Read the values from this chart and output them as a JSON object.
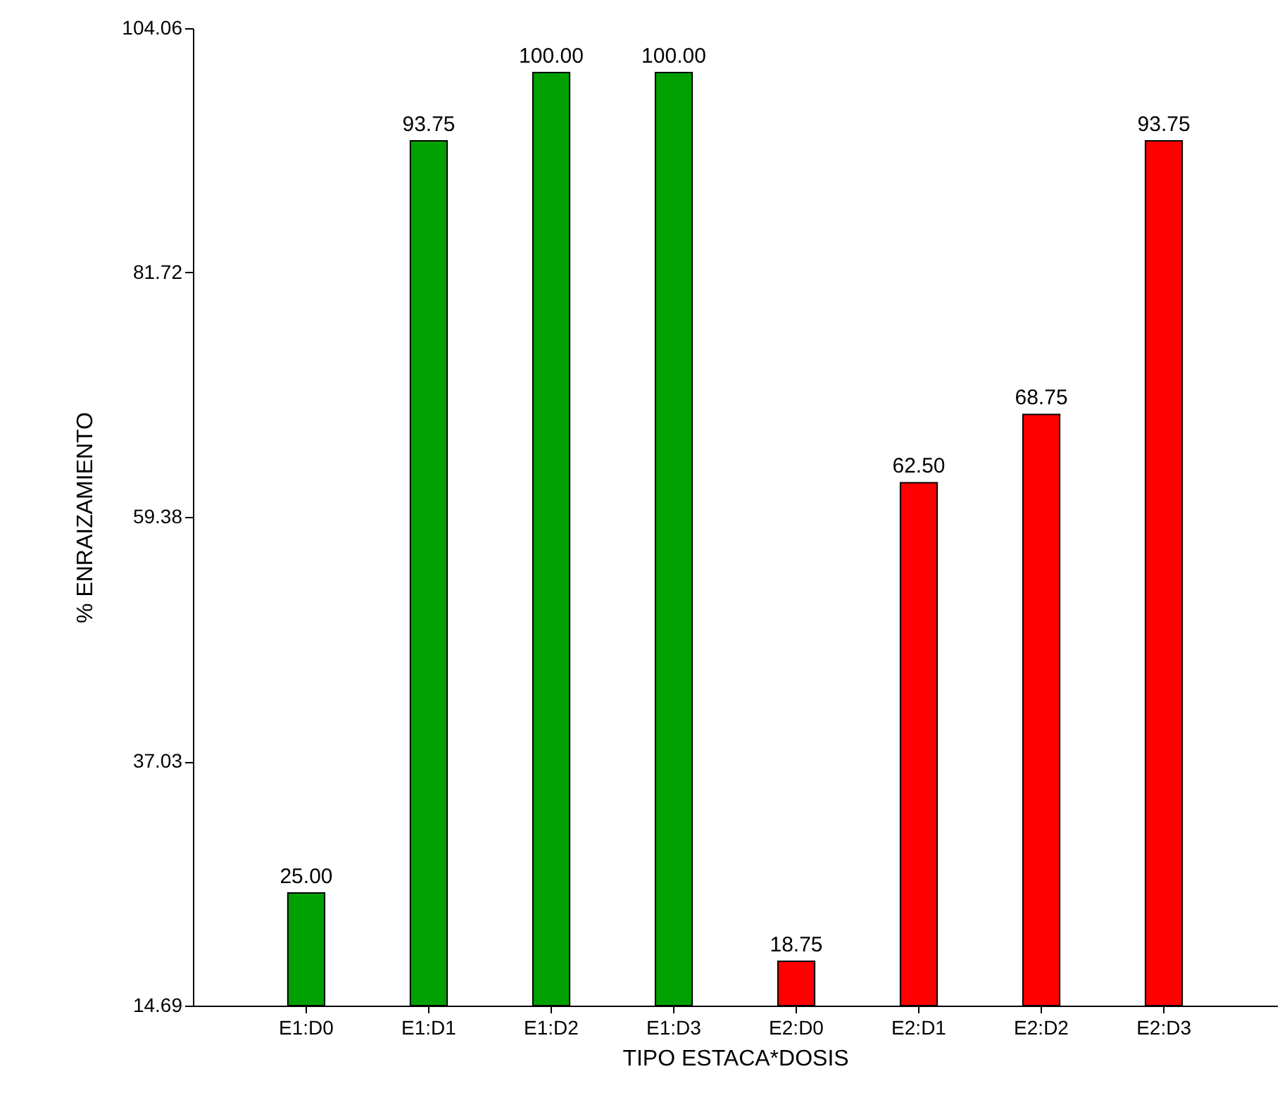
{
  "chart_data": {
    "type": "bar",
    "xlabel": "TIPO ESTACA*DOSIS",
    "ylabel": "% ENRAIZAMIENTO",
    "categories": [
      "E1:D0",
      "E1:D1",
      "E1:D2",
      "E1:D3",
      "E2:D0",
      "E2:D1",
      "E2:D2",
      "E2:D3"
    ],
    "values": [
      25.0,
      93.75,
      100.0,
      100.0,
      18.75,
      62.5,
      68.75,
      93.75
    ],
    "colors": [
      "#00a000",
      "#00a000",
      "#00a000",
      "#00a000",
      "#ff0000",
      "#ff0000",
      "#ff0000",
      "#ff0000"
    ],
    "value_labels": [
      "25.00",
      "93.75",
      "100.00",
      "100.00",
      "18.75",
      "62.50",
      "68.75",
      "93.75"
    ],
    "ylim": [
      14.69,
      104.06
    ],
    "yticks": [
      14.69,
      37.03,
      59.38,
      81.72,
      104.06
    ],
    "grid": false
  }
}
